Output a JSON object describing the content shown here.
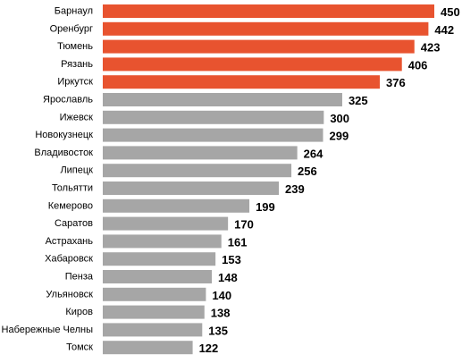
{
  "chart_data": {
    "type": "bar",
    "orientation": "horizontal",
    "title": "",
    "xlabel": "",
    "ylabel": "",
    "grid": false,
    "legend": "none",
    "xlim": [
      0,
      450
    ],
    "categories": [
      "Барнаул",
      "Оренбург",
      "Тюмень",
      "Рязань",
      "Иркутск",
      "Ярославль",
      "Ижевск",
      "Новокузнецк",
      "Владивосток",
      "Липецк",
      "Тольятти",
      "Кемерово",
      "Саратов",
      "Астрахань",
      "Хабаровск",
      "Пенза",
      "Ульяновск",
      "Киров",
      "Набережные Челны",
      "Томск"
    ],
    "values": [
      450,
      442,
      423,
      406,
      376,
      325,
      300,
      299,
      264,
      256,
      239,
      199,
      170,
      161,
      153,
      148,
      140,
      138,
      135,
      122
    ],
    "highlight_count": 5,
    "colors": {
      "highlight": "#e8532f",
      "default": "#a6a6a6"
    }
  }
}
